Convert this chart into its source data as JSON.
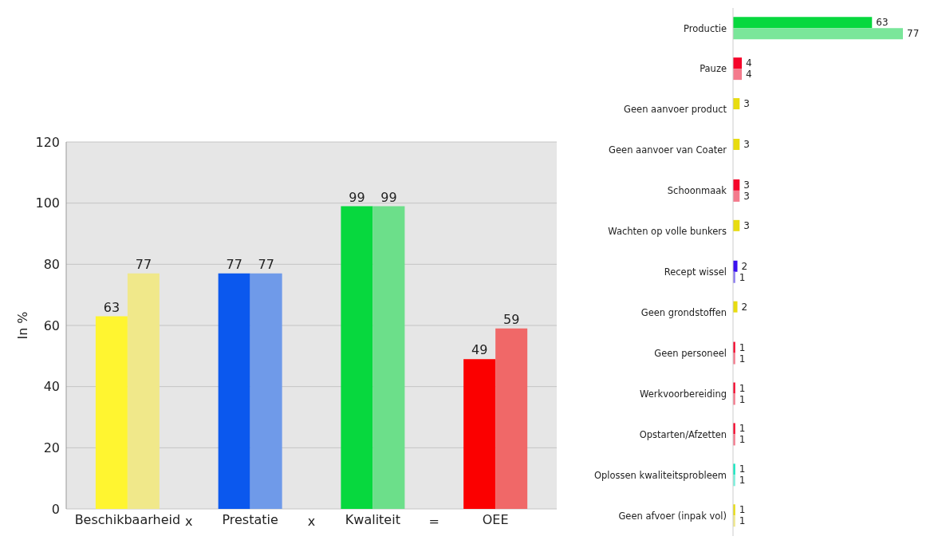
{
  "chart_data": [
    {
      "type": "bar",
      "ylabel": "In %",
      "categories": [
        "Beschikbaarheid",
        "Prestatie",
        "Kwaliteit",
        "OEE"
      ],
      "ylim": [
        0,
        120
      ],
      "yticks": [
        0,
        20,
        40,
        60,
        80,
        100,
        120
      ],
      "grid": "y",
      "data_labels": true,
      "annotations": [
        "x",
        "x",
        "="
      ],
      "series": [
        {
          "colors": [
            "#fff530",
            "#0b58ee",
            "#07d83e",
            "#fb0000"
          ],
          "values": [
            63,
            77,
            99,
            49
          ]
        },
        {
          "colors": [
            "#f0e88a",
            "#6f9ae9",
            "#6cdf8a",
            "#f06868"
          ],
          "values": [
            77,
            77,
            99,
            59
          ]
        }
      ]
    },
    {
      "type": "bar",
      "orientation": "horizontal",
      "data_labels": true,
      "categories": [
        "Productie",
        "Pauze",
        "Geen aanvoer product",
        "Geen aanvoer van Coater",
        "Schoonmaak",
        "Wachten op volle bunkers",
        "Recept wissel",
        "Geen grondstoffen",
        "Geen personeel",
        "Werkvoorbereiding",
        "Opstarten/Afzetten",
        "Oplossen kwaliteitsprobleem",
        "Geen afvoer (inpak vol)"
      ],
      "series": [
        {
          "colors": [
            "#07d83e",
            "#f5052a",
            "#e8dc10",
            "#e8dc10",
            "#f5052a",
            "#e8dc10",
            "#3a10f0",
            "#e8dc10",
            "#f5052a",
            "#f5052a",
            "#f5052a",
            "#10e8c0",
            "#e8dc10"
          ],
          "values": [
            63,
            4,
            3,
            3,
            3,
            3,
            2,
            2,
            1,
            1,
            1,
            1,
            1
          ]
        },
        {
          "colors": [
            "#7ae69a",
            "#f47a8c",
            "#f0e88a",
            "#f0e88a",
            "#f47a8c",
            "#f0e88a",
            "#8a7af0",
            "#f0e88a",
            "#f47a8c",
            "#f47a8c",
            "#f47a8c",
            "#7af0dc",
            "#f0e88a"
          ],
          "values": [
            77,
            4,
            null,
            null,
            3,
            null,
            1,
            null,
            1,
            1,
            1,
            1,
            1
          ]
        }
      ]
    }
  ]
}
